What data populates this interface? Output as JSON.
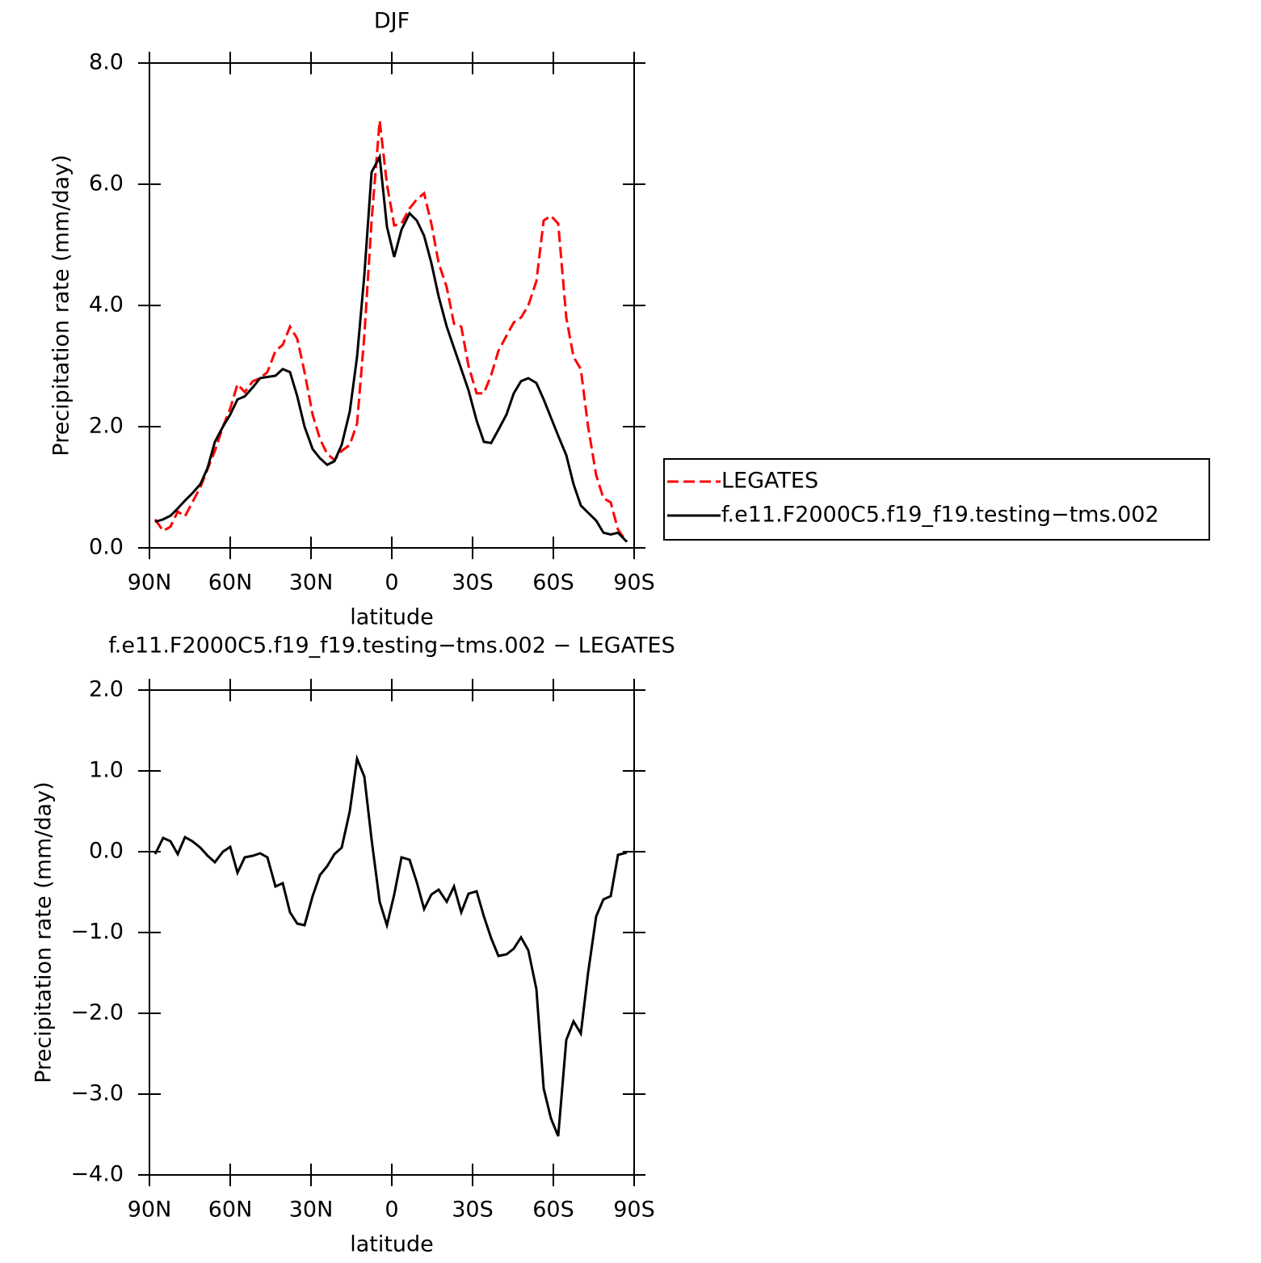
{
  "chart_data": [
    {
      "type": "line",
      "title": "DJF",
      "xlabel": "latitude",
      "ylabel": "Precipitation rate (mm/day)",
      "x": [
        87.9,
        84.9,
        82.2,
        79.5,
        76.8,
        74.1,
        71.1,
        68.4,
        65.7,
        62.7,
        60,
        57.3,
        54.6,
        51.6,
        48.9,
        46.2,
        43.2,
        40.5,
        37.8,
        35.1,
        32.4,
        29.4,
        26.7,
        24,
        21.3,
        18.6,
        15.6,
        12.9,
        10.2,
        7.5,
        4.5,
        1.8,
        -0.9,
        -3.6,
        -6.6,
        -9.3,
        -12,
        -14.7,
        -17.4,
        -20.4,
        -23.1,
        -25.8,
        -28.5,
        -31.5,
        -34.2,
        -36.9,
        -39.6,
        -42.6,
        -45.3,
        -48,
        -50.7,
        -53.7,
        -56.4,
        -59.1,
        -61.8,
        -64.8,
        -67.5,
        -70.2,
        -72.9,
        -75.9,
        -78.6,
        -81.3,
        -84,
        -87.3
      ],
      "series": [
        {
          "name": "LEGATES",
          "color": "#ff0000",
          "dash": "dashed",
          "values": [
            0.47,
            0.28,
            0.35,
            0.6,
            0.52,
            0.75,
            1.0,
            1.3,
            1.6,
            2.0,
            2.3,
            2.7,
            2.57,
            2.75,
            2.8,
            2.9,
            3.25,
            3.35,
            3.65,
            3.45,
            2.9,
            2.2,
            1.8,
            1.55,
            1.45,
            1.6,
            1.7,
            2.05,
            3.5,
            5.4,
            7.05,
            6.0,
            5.32,
            5.35,
            5.6,
            5.75,
            5.85,
            5.35,
            4.7,
            4.3,
            3.7,
            3.65,
            3.0,
            2.55,
            2.55,
            2.85,
            3.25,
            3.5,
            3.72,
            3.8,
            4.0,
            4.4,
            5.4,
            5.48,
            5.35,
            3.8,
            3.15,
            2.95,
            2.0,
            1.2,
            0.82,
            0.75,
            0.3,
            0.1
          ]
        },
        {
          "name": "f.e11.F2000C5.f19_f19.testing−tms.002",
          "color": "#000000",
          "dash": "solid",
          "values": [
            0.43,
            0.47,
            0.53,
            0.65,
            0.78,
            0.9,
            1.05,
            1.32,
            1.75,
            2.0,
            2.2,
            2.45,
            2.5,
            2.65,
            2.8,
            2.82,
            2.84,
            2.95,
            2.9,
            2.5,
            2.0,
            1.63,
            1.48,
            1.37,
            1.43,
            1.7,
            2.25,
            3.15,
            4.5,
            6.2,
            6.45,
            5.3,
            4.8,
            5.25,
            5.52,
            5.4,
            5.15,
            4.7,
            4.15,
            3.65,
            3.3,
            2.95,
            2.6,
            2.1,
            1.75,
            1.73,
            1.95,
            2.2,
            2.55,
            2.75,
            2.8,
            2.72,
            2.45,
            2.15,
            1.85,
            1.53,
            1.05,
            0.7,
            0.58,
            0.45,
            0.25,
            0.22,
            0.25,
            0.1
          ]
        }
      ],
      "xlim": [
        90,
        -90
      ],
      "xticks": [
        {
          "value": 90,
          "label": "90N"
        },
        {
          "value": 60,
          "label": "60N"
        },
        {
          "value": 30,
          "label": "30N"
        },
        0,
        {
          "value": -30,
          "label": "30S"
        },
        {
          "value": -60,
          "label": "60S"
        },
        {
          "value": -90,
          "label": "90S"
        }
      ],
      "ylim": [
        0,
        8
      ],
      "yticks": [
        {
          "value": 0,
          "label": "0.0"
        },
        {
          "value": 2,
          "label": "2.0"
        },
        {
          "value": 4,
          "label": "4.0"
        },
        {
          "value": 6,
          "label": "6.0"
        },
        {
          "value": 8,
          "label": "8.0"
        }
      ],
      "legend": "right"
    },
    {
      "type": "line",
      "title": "f.e11.F2000C5.f19_f19.testing−tms.002 − LEGATES",
      "xlabel": "latitude",
      "ylabel": "Precipitation rate (mm/day)",
      "x": [
        87.9,
        84.9,
        82.2,
        79.5,
        76.8,
        74.1,
        71.1,
        68.4,
        65.7,
        62.7,
        60,
        57.3,
        54.6,
        51.6,
        48.9,
        46.2,
        43.2,
        40.5,
        37.8,
        35.1,
        32.4,
        29.4,
        26.7,
        24,
        21.3,
        18.6,
        15.6,
        12.9,
        10.2,
        7.5,
        4.5,
        1.8,
        -0.9,
        -3.6,
        -6.6,
        -9.3,
        -12,
        -14.7,
        -17.4,
        -20.4,
        -23.1,
        -25.8,
        -28.5,
        -31.5,
        -34.2,
        -36.9,
        -39.6,
        -42.6,
        -45.3,
        -48,
        -50.7,
        -53.7,
        -56.4,
        -59.1,
        -61.8,
        -64.8,
        -67.5,
        -70.2,
        -72.9,
        -75.9,
        -78.6,
        -81.3,
        -84,
        -87.3
      ],
      "values": [
        -0.03,
        0.17,
        0.13,
        -0.03,
        0.18,
        0.13,
        0.05,
        -0.05,
        -0.13,
        0.0,
        0.06,
        -0.26,
        -0.07,
        -0.05,
        -0.02,
        -0.07,
        -0.43,
        -0.39,
        -0.75,
        -0.89,
        -0.91,
        -0.55,
        -0.29,
        -0.18,
        -0.03,
        0.05,
        0.5,
        1.15,
        0.93,
        0.15,
        -0.62,
        -0.91,
        -0.53,
        -0.07,
        -0.1,
        -0.38,
        -0.71,
        -0.53,
        -0.47,
        -0.62,
        -0.43,
        -0.75,
        -0.52,
        -0.49,
        -0.8,
        -1.07,
        -1.29,
        -1.27,
        -1.2,
        -1.06,
        -1.22,
        -1.7,
        -2.93,
        -3.3,
        -3.52,
        -2.33,
        -2.1,
        -2.25,
        -1.5,
        -0.8,
        -0.59,
        -0.55,
        -0.04,
        -0.01
      ],
      "color": "#000000",
      "xlim": [
        90,
        -90
      ],
      "xticks": [
        {
          "value": 90,
          "label": "90N"
        },
        {
          "value": 60,
          "label": "60N"
        },
        {
          "value": 30,
          "label": "30N"
        },
        0,
        {
          "value": -30,
          "label": "30S"
        },
        {
          "value": -60,
          "label": "60S"
        },
        {
          "value": -90,
          "label": "90S"
        }
      ],
      "ylim": [
        -4,
        2
      ],
      "yticks": [
        {
          "value": -4,
          "label": "−4.0"
        },
        {
          "value": -3,
          "label": "−3.0"
        },
        {
          "value": -2,
          "label": "−2.0"
        },
        {
          "value": -1,
          "label": "−1.0"
        },
        {
          "value": 0,
          "label": "0.0"
        },
        {
          "value": 1,
          "label": "1.0"
        },
        {
          "value": 2,
          "label": "2.0"
        }
      ]
    }
  ]
}
